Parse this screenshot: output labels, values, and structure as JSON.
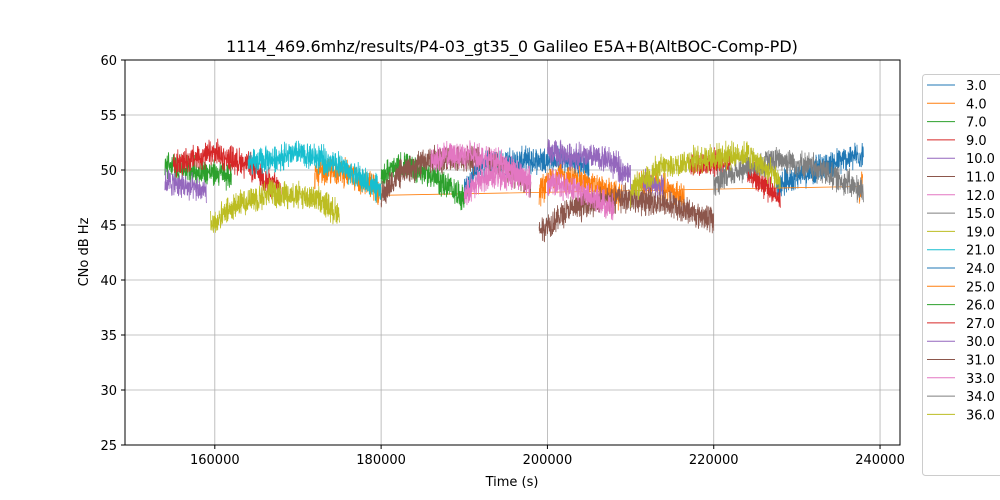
{
  "chart_data": {
    "type": "line",
    "title": "1114_469.6mhz/results/P4-03_gt35_0 Galileo E5A+B(AltBOC-Comp-PD)",
    "xlabel": "Time (s)",
    "ylabel": "CNo dB Hz",
    "xlim": [
      149200,
      242400
    ],
    "ylim": [
      25,
      60
    ],
    "xticks": [
      160000,
      180000,
      200000,
      220000,
      240000
    ],
    "xtick_labels": [
      "160000",
      "180000",
      "200000",
      "220000",
      "240000"
    ],
    "yticks": [
      25,
      30,
      35,
      40,
      45,
      50,
      55,
      60
    ],
    "ytick_labels": [
      "25",
      "30",
      "35",
      "40",
      "45",
      "50",
      "55",
      "60"
    ],
    "grid": true,
    "legend_placement": "outside-right",
    "series": [
      {
        "name": "3.0",
        "color": "#1f77b4",
        "segments": [
          [
            [
              190000,
              48
            ],
            [
              192000,
              50.5
            ],
            [
              200000,
              51
            ],
            [
              205000,
              50.5
            ]
          ],
          [
            [
              227500,
              48.5
            ],
            [
              230000,
              49.5
            ],
            [
              234000,
              50.5
            ],
            [
              238000,
              51.5
            ]
          ]
        ]
      },
      {
        "name": "4.0",
        "color": "#ff7f0e",
        "segments": [
          [
            [
              172000,
              49.5
            ],
            [
              175000,
              50
            ],
            [
              180000,
              48
            ]
          ],
          [
            [
              199000,
              48
            ],
            [
              201000,
              49.5
            ],
            [
              204000,
              49
            ],
            [
              209000,
              47.5
            ]
          ],
          [
            [
              211000,
              49
            ],
            [
              214000,
              48.5
            ],
            [
              216500,
              47.5
            ]
          ],
          [
            [
              237500,
              47.5
            ],
            [
              237900,
              49
            ]
          ]
        ],
        "lines": [
          [
            [
              180000,
              47.7
            ],
            [
              237500,
              48.5
            ]
          ]
        ]
      },
      {
        "name": "7.0",
        "color": "#2ca02c",
        "segments": [
          [
            [
              154000,
              50.5
            ],
            [
              157000,
              50
            ],
            [
              162000,
              49.5
            ]
          ],
          [
            [
              180000,
              49.5
            ],
            [
              183000,
              50.5
            ],
            [
              186000,
              49.5
            ],
            [
              190000,
              47.5
            ]
          ]
        ]
      },
      {
        "name": "9.0",
        "color": "#d62728",
        "segments": [
          [
            [
              155000,
              50.5
            ],
            [
              160000,
              51.5
            ],
            [
              164000,
              50.5
            ],
            [
              168000,
              48
            ]
          ],
          [
            [
              217000,
              50.5
            ],
            [
              222000,
              50.8
            ]
          ],
          [
            [
              224000,
              50
            ],
            [
              228000,
              47.5
            ]
          ]
        ]
      },
      {
        "name": "10.0",
        "color": "#9467bd",
        "segments": [
          [
            [
              154000,
              49
            ],
            [
              159000,
              48
            ]
          ],
          [
            [
              200000,
              51.5
            ],
            [
              207000,
              51
            ],
            [
              210000,
              49.5
            ]
          ],
          [
            [
              211500,
              49
            ],
            [
              214000,
              48.5
            ]
          ]
        ]
      },
      {
        "name": "11.0",
        "color": "#8c564b",
        "segments": [
          [
            [
              180000,
              47.5
            ],
            [
              182000,
              49.5
            ],
            [
              186000,
              51
            ],
            [
              192000,
              51
            ]
          ],
          [
            [
              193000,
              51
            ],
            [
              198000,
              48.5
            ]
          ],
          [
            [
              199000,
              44.5
            ],
            [
              203000,
              46.5
            ],
            [
              208000,
              47.5
            ],
            [
              214000,
              47
            ],
            [
              220000,
              45.5
            ]
          ]
        ]
      },
      {
        "name": "12.0",
        "color": "#e377c2",
        "segments": [
          [
            [
              186000,
              51
            ],
            [
              190000,
              51.5
            ],
            [
              195000,
              50.5
            ],
            [
              198000,
              48.5
            ]
          ],
          [
            [
              190000,
              48
            ],
            [
              193000,
              49.5
            ],
            [
              198000,
              49.5
            ]
          ],
          [
            [
              200000,
              49
            ],
            [
              204000,
              48
            ],
            [
              208000,
              46.5
            ]
          ]
        ]
      },
      {
        "name": "15.0",
        "color": "#7f7f7f",
        "segments": [
          [
            [
              220000,
              48.5
            ],
            [
              223000,
              50
            ],
            [
              228000,
              51
            ],
            [
              233000,
              50
            ],
            [
              238000,
              48
            ]
          ]
        ]
      },
      {
        "name": "19.0",
        "color": "#bcbd22",
        "segments": [
          [
            [
              159500,
              45
            ],
            [
              163000,
              47
            ],
            [
              167000,
              48
            ],
            [
              172000,
              47.5
            ],
            [
              175000,
              46
            ]
          ],
          [
            [
              210000,
              48
            ],
            [
              213000,
              50
            ],
            [
              218000,
              51
            ],
            [
              224000,
              51.5
            ],
            [
              228000,
              49
            ]
          ]
        ]
      },
      {
        "name": "21.0",
        "color": "#17becf",
        "segments": [
          [
            [
              164000,
              50.5
            ],
            [
              170000,
              51.5
            ],
            [
              175000,
              50.5
            ],
            [
              180000,
              48
            ]
          ]
        ]
      },
      {
        "name": "24.0",
        "color": "#1f77b4",
        "segments": []
      },
      {
        "name": "25.0",
        "color": "#ff7f0e",
        "segments": []
      },
      {
        "name": "26.0",
        "color": "#2ca02c",
        "segments": []
      },
      {
        "name": "27.0",
        "color": "#d62728",
        "segments": []
      },
      {
        "name": "30.0",
        "color": "#9467bd",
        "segments": []
      },
      {
        "name": "31.0",
        "color": "#8c564b",
        "segments": []
      },
      {
        "name": "33.0",
        "color": "#e377c2",
        "segments": []
      },
      {
        "name": "34.0",
        "color": "#7f7f7f",
        "segments": []
      },
      {
        "name": "36.0",
        "color": "#bcbd22",
        "segments": []
      }
    ]
  }
}
